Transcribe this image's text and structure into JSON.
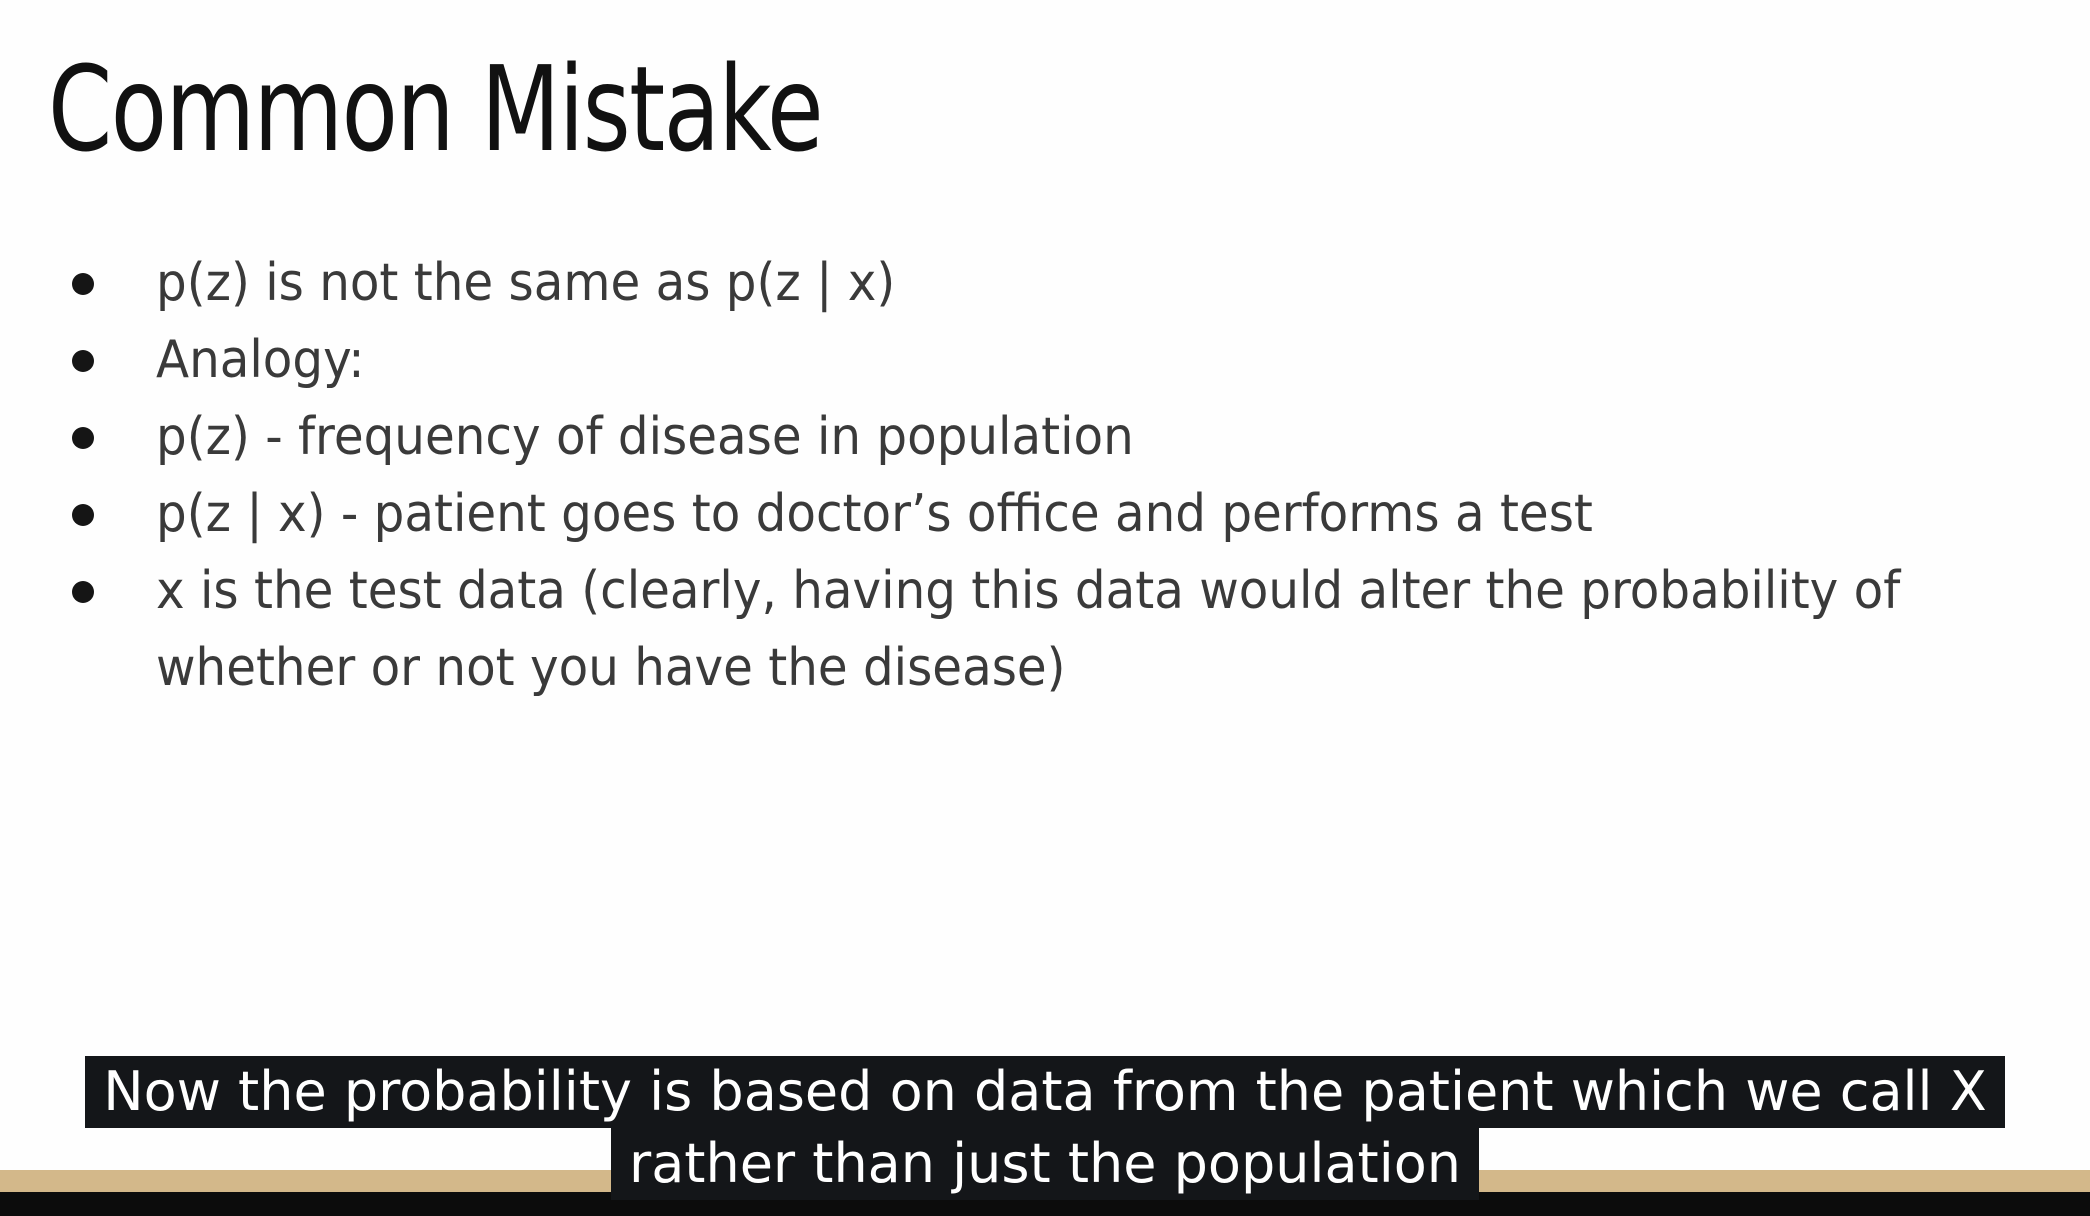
{
  "slide": {
    "title": "Common Mistake",
    "bullets": [
      "p(z) is not the same as p(z | x)",
      "Analogy:",
      "p(z) - frequency of disease in population",
      "p(z | x) - patient goes to doctor’s office and performs a test",
      "x is the test data (clearly, having this data would alter the probability of whether or not you have the disease)"
    ]
  },
  "subtitle": {
    "line1": "Now the probability is based on data from the patient which we call X",
    "line2": "rather than just the population"
  },
  "colors": {
    "background": "#fefefe",
    "title": "#111111",
    "bullet_text": "#3a3a3a",
    "caption_bg": "#141619",
    "caption_text": "#ffffff",
    "bar_tan": "#d3b88a",
    "bar_dark": "#0c0c0c"
  }
}
